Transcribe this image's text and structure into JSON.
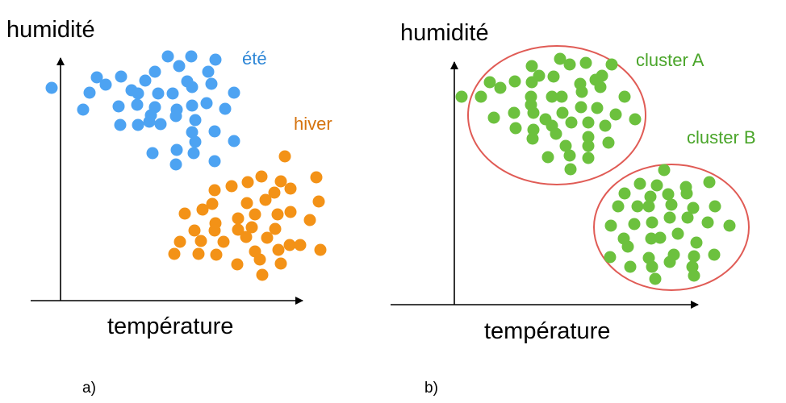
{
  "panels": [
    {
      "id": "a",
      "caption": "a)",
      "ylabel": "humidité",
      "xlabel": "température",
      "groups": [
        {
          "label": "été",
          "color": "#4da3f2",
          "points": [
            [
              64,
              109
            ],
            [
              120,
              96
            ],
            [
              131,
              105
            ],
            [
              150,
              95
            ],
            [
              111,
              115
            ],
            [
              163,
              112
            ],
            [
              180,
              100
            ],
            [
              192,
              89
            ],
            [
              208,
              70
            ],
            [
              237,
              70
            ],
            [
              267,
              74
            ],
            [
              222,
              82
            ],
            [
              258,
              89
            ],
            [
              196,
              116
            ],
            [
              171,
              116
            ],
            [
              232,
              101
            ],
            [
              238,
              108
            ],
            [
              262,
              104
            ],
            [
              290,
              115
            ],
            [
              103,
              136
            ],
            [
              147,
              132
            ],
            [
              170,
              130
            ],
            [
              192,
              133
            ],
            [
              214,
              116
            ],
            [
              219,
              136
            ],
            [
              238,
              131
            ],
            [
              256,
              128
            ],
            [
              279,
              135
            ],
            [
              149,
              155
            ],
            [
              171,
              155
            ],
            [
              185,
              151
            ],
            [
              199,
              154
            ],
            [
              218,
              144
            ],
            [
              242,
              149
            ],
            [
              187,
              143
            ],
            [
              266,
              163
            ],
            [
              290,
              175
            ],
            [
              238,
              164
            ],
            [
              242,
              176
            ],
            [
              219,
              186
            ],
            [
              189,
              190
            ],
            [
              240,
              190
            ],
            [
              266,
              200
            ],
            [
              218,
              204
            ]
          ]
        },
        {
          "label": "hiver",
          "color": "#f39217",
          "points": [
            [
              353,
              194
            ],
            [
              324,
              219
            ],
            [
              348,
              225
            ],
            [
              392,
              220
            ],
            [
              266,
              236
            ],
            [
              287,
              231
            ],
            [
              307,
              226
            ],
            [
              263,
              253
            ],
            [
              340,
              239
            ],
            [
              360,
              234
            ],
            [
              229,
              265
            ],
            [
              251,
              260
            ],
            [
              306,
              252
            ],
            [
              329,
              248
            ],
            [
              395,
              250
            ],
            [
              267,
              277
            ],
            [
              295,
              271
            ],
            [
              316,
              266
            ],
            [
              344,
              266
            ],
            [
              360,
              263
            ],
            [
              384,
              273
            ],
            [
              241,
              286
            ],
            [
              266,
              286
            ],
            [
              295,
              285
            ],
            [
              312,
              282
            ],
            [
              341,
              284
            ],
            [
              223,
              300
            ],
            [
              249,
              299
            ],
            [
              277,
              300
            ],
            [
              305,
              294
            ],
            [
              331,
              295
            ],
            [
              359,
              304
            ],
            [
              216,
              315
            ],
            [
              246,
              315
            ],
            [
              268,
              316
            ],
            [
              316,
              312
            ],
            [
              345,
              310
            ],
            [
              372,
              304
            ],
            [
              397,
              310
            ],
            [
              294,
              328
            ],
            [
              322,
              322
            ],
            [
              348,
              327
            ],
            [
              325,
              341
            ]
          ]
        }
      ]
    },
    {
      "id": "b",
      "caption": "b)",
      "ylabel": "humidité",
      "xlabel": "température",
      "groups": [
        {
          "label": "cluster A",
          "color": "#6cc13e",
          "ellipse_color": "#e05b55",
          "points": [
            [
              572,
              120
            ],
            [
              607,
              102
            ],
            [
              596,
              120
            ],
            [
              620,
              109
            ],
            [
              638,
              101
            ],
            [
              659,
              82
            ],
            [
              659,
              102
            ],
            [
              668,
              94
            ],
            [
              694,
              73
            ],
            [
              706,
              80
            ],
            [
              726,
              78
            ],
            [
              758,
              80
            ],
            [
              686,
              95
            ],
            [
              719,
              104
            ],
            [
              738,
              99
            ],
            [
              746,
              94
            ],
            [
              658,
              120
            ],
            [
              658,
              130
            ],
            [
              684,
              120
            ],
            [
              696,
              120
            ],
            [
              721,
              114
            ],
            [
              744,
              108
            ],
            [
              774,
              120
            ],
            [
              612,
              146
            ],
            [
              637,
              140
            ],
            [
              661,
              140
            ],
            [
              676,
              148
            ],
            [
              697,
              140
            ],
            [
              720,
              133
            ],
            [
              740,
              134
            ],
            [
              763,
              142
            ],
            [
              787,
              148
            ],
            [
              639,
              159
            ],
            [
              661,
              161
            ],
            [
              684,
              156
            ],
            [
              708,
              152
            ],
            [
              729,
              152
            ],
            [
              750,
              156
            ],
            [
              689,
              166
            ],
            [
              729,
              170
            ],
            [
              660,
              172
            ],
            [
              754,
              177
            ],
            [
              701,
              181
            ],
            [
              729,
              181
            ],
            [
              679,
              195
            ],
            [
              706,
              193
            ],
            [
              729,
              196
            ],
            [
              707,
              210
            ]
          ]
        },
        {
          "label": "cluster B",
          "color": "#6cc13e",
          "ellipse_color": "#e05b55",
          "points": [
            [
              823,
              211
            ],
            [
              793,
              228
            ],
            [
              814,
              230
            ],
            [
              850,
              232
            ],
            [
              879,
              226
            ],
            [
              774,
              240
            ],
            [
              806,
              244
            ],
            [
              828,
              241
            ],
            [
              851,
              240
            ],
            [
              766,
              256
            ],
            [
              790,
              256
            ],
            [
              804,
              256
            ],
            [
              832,
              254
            ],
            [
              859,
              258
            ],
            [
              886,
              256
            ],
            [
              830,
              270
            ],
            [
              852,
              270
            ],
            [
              877,
              276
            ],
            [
              757,
              280
            ],
            [
              786,
              278
            ],
            [
              808,
              276
            ],
            [
              904,
              280
            ],
            [
              773,
              296
            ],
            [
              807,
              296
            ],
            [
              818,
              295
            ],
            [
              840,
              290
            ],
            [
              863,
              301
            ],
            [
              756,
              319
            ],
            [
              778,
              306
            ],
            [
              835,
              316
            ],
            [
              860,
              318
            ],
            [
              885,
              316
            ],
            [
              781,
              331
            ],
            [
              804,
              320
            ],
            [
              830,
              325
            ],
            [
              858,
              331
            ],
            [
              808,
              331
            ],
            [
              812,
              346
            ],
            [
              860,
              342
            ]
          ]
        }
      ]
    }
  ]
}
